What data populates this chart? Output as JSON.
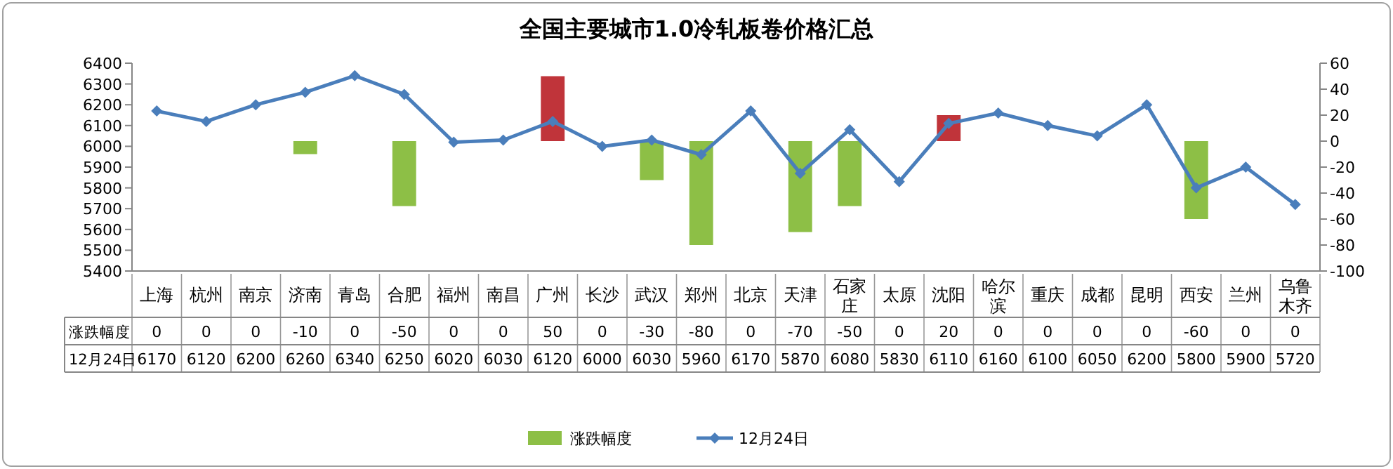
{
  "chart_data": {
    "type": "bar",
    "title": "全国主要城市1.0冷轧板卷价格汇总",
    "categories": [
      "上海",
      "杭州",
      "南京",
      "济南",
      "青岛",
      "合肥",
      "福州",
      "南昌",
      "广州",
      "长沙",
      "武汉",
      "郑州",
      "北京",
      "天津",
      "石家庄",
      "太原",
      "沈阳",
      "哈尔滨",
      "重庆",
      "成都",
      "昆明",
      "西安",
      "兰州",
      "乌鲁木齐"
    ],
    "series": [
      {
        "name": "涨跌幅度",
        "axis": "y2",
        "color": "#8dbf46",
        "colors": [
          "#8dbf46",
          "#8dbf46",
          "#8dbf46",
          "#8dbf46",
          "#8dbf46",
          "#8dbf46",
          "#8dbf46",
          "#8dbf46",
          "#c0343a",
          "#8dbf46",
          "#8dbf46",
          "#8dbf46",
          "#8dbf46",
          "#8dbf46",
          "#8dbf46",
          "#8dbf46",
          "#c0343a",
          "#8dbf46",
          "#8dbf46",
          "#8dbf46",
          "#8dbf46",
          "#8dbf46",
          "#8dbf46",
          "#8dbf46"
        ],
        "values": [
          0,
          0,
          0,
          -10,
          0,
          -50,
          0,
          0,
          50,
          0,
          -30,
          -80,
          0,
          -70,
          -50,
          0,
          20,
          0,
          0,
          0,
          0,
          -60,
          0,
          0
        ]
      },
      {
        "name": "12月24日",
        "type": "line",
        "color": "#4a7ebb",
        "values": [
          6170,
          6120,
          6200,
          6260,
          6340,
          6250,
          6020,
          6030,
          6120,
          6000,
          6030,
          5960,
          6170,
          5870,
          6080,
          5830,
          6110,
          6160,
          6100,
          6050,
          6200,
          5800,
          5900,
          5720
        ]
      }
    ],
    "ylim": [
      5400,
      6400
    ],
    "yticks": [
      5400,
      5500,
      5600,
      5700,
      5800,
      5900,
      6000,
      6100,
      6200,
      6300,
      6400
    ],
    "y2lim": [
      -100,
      60
    ],
    "y2ticks": [
      -100,
      -80,
      -60,
      -40,
      -20,
      0,
      20,
      40,
      60
    ],
    "marker": "diamond",
    "data_labels": true,
    "legend": "bottom"
  }
}
